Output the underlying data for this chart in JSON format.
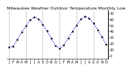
{
  "title": "Milwaukee Weather Outdoor Temperature Monthly Low",
  "values": [
    14,
    16,
    27,
    39,
    49,
    59,
    64,
    61,
    52,
    41,
    29,
    17,
    12,
    18,
    29,
    40,
    50,
    60,
    65,
    62,
    54,
    43,
    31,
    19
  ],
  "line_color": "#0000dd",
  "marker_color": "#000000",
  "background_color": "#ffffff",
  "ylim": [
    -5,
    75
  ],
  "ytick_values": [
    0,
    10,
    20,
    30,
    40,
    50,
    60,
    70
  ],
  "ytick_labels": [
    "0",
    "10",
    "20",
    "30",
    "40",
    "50",
    "60",
    "70"
  ],
  "grid_positions": [
    0,
    4,
    8,
    12,
    16,
    20
  ],
  "grid_color": "#888888",
  "title_fontsize": 4.5,
  "tick_fontsize": 3.5
}
